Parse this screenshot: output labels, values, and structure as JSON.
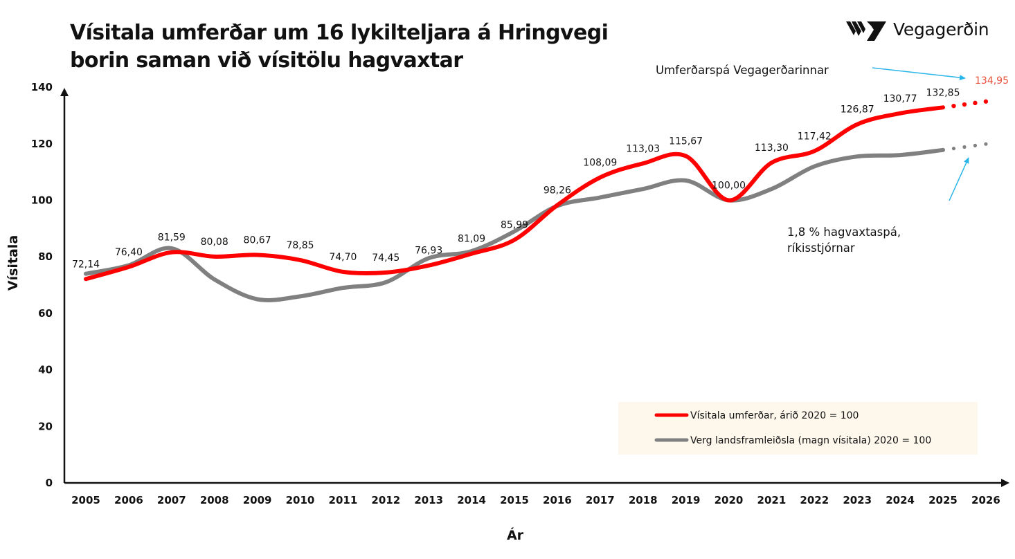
{
  "title": {
    "line1": "Vísitala umferðar um 16 lykilteljara á Hringvegi",
    "line2": "borin saman við vísitölu hagvaxtar"
  },
  "logo": {
    "text": "Vegagerðin",
    "icon": "vegagerdin-stripes-logo-icon"
  },
  "chart_data": {
    "type": "line",
    "xlabel": "Ár",
    "ylabel": "Vísitala",
    "ylim": [
      0,
      140
    ],
    "yticks": [
      0,
      20,
      40,
      60,
      80,
      100,
      120,
      140
    ],
    "categories": [
      "2005",
      "2006",
      "2007",
      "2008",
      "2009",
      "2010",
      "2011",
      "2012",
      "2013",
      "2014",
      "2015",
      "2016",
      "2017",
      "2018",
      "2019",
      "2020",
      "2021",
      "2022",
      "2023",
      "2024",
      "2025",
      "2026"
    ],
    "grid": false,
    "legend_position": "bottom-right",
    "series": [
      {
        "name": "Vísitala umferðar, árið 2020 = 100",
        "color": "#ff0000",
        "values": [
          72.14,
          76.4,
          81.59,
          80.08,
          80.67,
          78.85,
          74.7,
          74.45,
          76.93,
          81.09,
          85.99,
          98.26,
          108.09,
          113.03,
          115.67,
          100.0,
          113.3,
          117.42,
          126.87,
          130.77,
          132.85,
          null
        ],
        "labels": [
          "72,14",
          "76,40",
          "81,59",
          "80,08",
          "80,67",
          "78,85",
          "74,70",
          "74,45",
          "76,93",
          "81,09",
          "85,99",
          "98,26",
          "108,09",
          "113,03",
          "115,67",
          "100,00",
          "113,30",
          "117,42",
          "126,87",
          "130,77",
          "132,85",
          ""
        ],
        "forecast": {
          "x": [
            "2025",
            "2026"
          ],
          "values": [
            132.85,
            134.95
          ],
          "label": "134,95",
          "label_color": "#e8503a"
        }
      },
      {
        "name": "Verg landsframleiðsla (magn vísitala) 2020 = 100",
        "color": "#808080",
        "values": [
          74,
          77,
          83,
          72,
          65,
          66,
          69,
          71,
          79.5,
          82,
          89,
          98,
          101,
          104,
          107,
          100,
          104,
          112,
          115.5,
          116,
          117.8,
          null
        ],
        "forecast": {
          "x": [
            "2025",
            "2026"
          ],
          "values": [
            117.8,
            119.9
          ]
        }
      }
    ],
    "annotations": [
      {
        "text": "Umferðarspá Vegagerðarinnar"
      },
      {
        "text_line1": "1,8 % hagvaxtaspá,",
        "text_line2": "ríkisstjórnar"
      }
    ],
    "colors": {
      "arrow": "#29b6e8",
      "legend_bg": "#fdf7ec",
      "axis": "#111111"
    }
  }
}
